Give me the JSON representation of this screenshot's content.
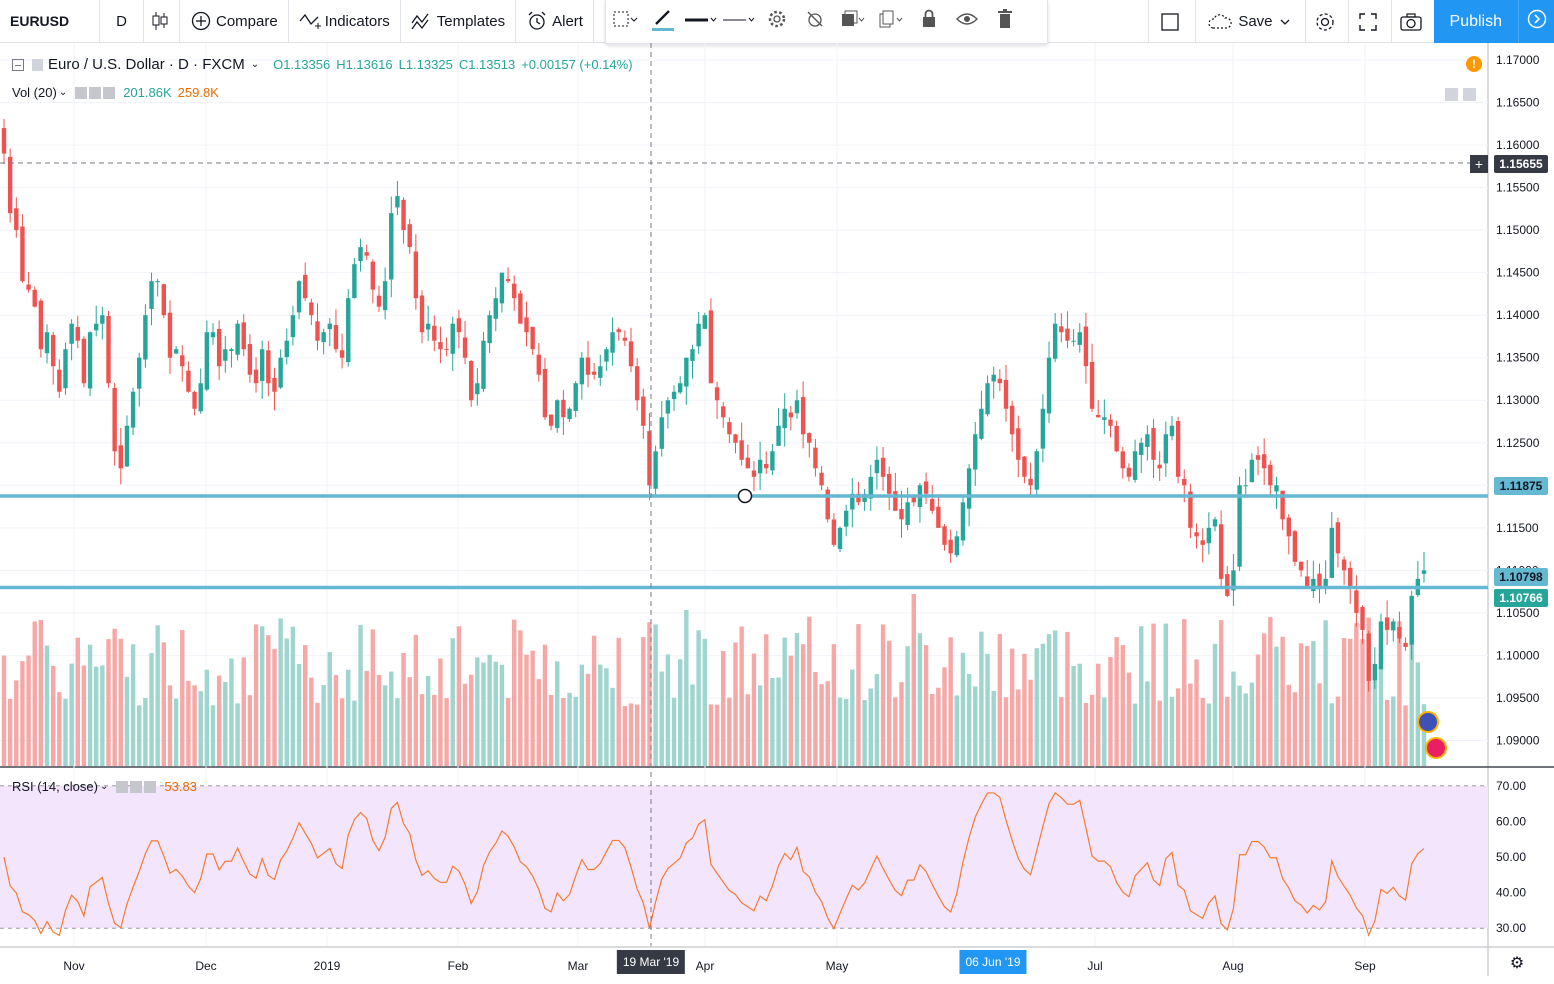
{
  "toolbar": {
    "symbol": "EURUSD",
    "interval": "D",
    "compare": "Compare",
    "indicators": "Indicators",
    "templates": "Templates",
    "alert": "Alert",
    "save": "Save",
    "publish": "Publish"
  },
  "legend": {
    "title": "Euro / U.S. Dollar · D · FXCM",
    "o": "O1.13356",
    "h": "H1.13616",
    "l": "L1.13325",
    "c": "C1.13513",
    "chg": "+0.00157 (+0.14%)",
    "vol_label": "Vol (20)",
    "vol1": "201.86K",
    "vol2": "259.8K",
    "rsi_label": "RSI (14, close)",
    "rsi_val": "53.83"
  },
  "price_axis": {
    "labels": [
      "1.17000",
      "1.16500",
      "1.16000",
      "1.15500",
      "1.15000",
      "1.14500",
      "1.14000",
      "1.13500",
      "1.13000",
      "1.12500",
      "1.12000",
      "1.11500",
      "1.11000",
      "1.10500",
      "1.10000",
      "1.09500",
      "1.09000"
    ],
    "crosshair": "1.15655",
    "line1": "1.11875",
    "line2": "1.10798",
    "last": "1.10766"
  },
  "rsi_axis": {
    "labels": [
      "70.00",
      "60.00",
      "50.00",
      "40.00",
      "30.00"
    ]
  },
  "time_axis": {
    "labels": [
      "Nov",
      "Dec",
      "2019",
      "Feb",
      "Mar",
      "Apr",
      "May",
      "Jul",
      "Aug",
      "Sep"
    ],
    "cursor_date": "19 Mar '19",
    "marker_date": "06 Jun '19"
  },
  "colors": {
    "up": "#26a69a",
    "down": "#ef5350",
    "line": "#65b8d2",
    "rsi": "#f57c32",
    "rsi_bg": "#f3e5fc",
    "accent": "#2196f3"
  },
  "chart_data": {
    "type": "candlestick",
    "series_name": "Euro / U.S. Dollar",
    "ylim": [
      1.087,
      1.172
    ],
    "hlines": [
      1.11875,
      1.10798
    ],
    "close": [
      1.159,
      1.152,
      1.15,
      1.144,
      1.143,
      1.141,
      1.136,
      1.138,
      1.134,
      1.131,
      1.136,
      1.139,
      1.137,
      1.132,
      1.138,
      1.139,
      1.14,
      1.132,
      1.124,
      1.122,
      1.127,
      1.131,
      1.135,
      1.14,
      1.144,
      1.144,
      1.14,
      1.135,
      1.136,
      1.134,
      1.131,
      1.129,
      1.132,
      1.138,
      1.138,
      1.134,
      1.136,
      1.136,
      1.139,
      1.136,
      1.133,
      1.132,
      1.136,
      1.132,
      1.131,
      1.135,
      1.137,
      1.14,
      1.144,
      1.142,
      1.14,
      1.137,
      1.138,
      1.139,
      1.136,
      1.135,
      1.142,
      1.146,
      1.148,
      1.147,
      1.143,
      1.141,
      1.144,
      1.152,
      1.154,
      1.15,
      1.148,
      1.142,
      1.138,
      1.139,
      1.137,
      1.136,
      1.136,
      1.139,
      1.138,
      1.135,
      1.13,
      1.132,
      1.137,
      1.14,
      1.142,
      1.145,
      1.144,
      1.142,
      1.139,
      1.138,
      1.136,
      1.133,
      1.128,
      1.127,
      1.13,
      1.128,
      1.129,
      1.132,
      1.135,
      1.133,
      1.133,
      1.134,
      1.136,
      1.138,
      1.138,
      1.137,
      1.134,
      1.13,
      1.127,
      1.12,
      1.124,
      1.128,
      1.13,
      1.131,
      1.132,
      1.135,
      1.136,
      1.139,
      1.14,
      1.132,
      1.13,
      1.128,
      1.126,
      1.125,
      1.123,
      1.122,
      1.121,
      1.123,
      1.122,
      1.124,
      1.127,
      1.129,
      1.128,
      1.13,
      1.126,
      1.125,
      1.122,
      1.12,
      1.116,
      1.113,
      1.115,
      1.117,
      1.119,
      1.118,
      1.119,
      1.121,
      1.123,
      1.121,
      1.119,
      1.117,
      1.116,
      1.118,
      1.118,
      1.12,
      1.119,
      1.117,
      1.115,
      1.113,
      1.112,
      1.114,
      1.118,
      1.122,
      1.126,
      1.129,
      1.132,
      1.133,
      1.132,
      1.129,
      1.126,
      1.123,
      1.121,
      1.12,
      1.124,
      1.129,
      1.135,
      1.139,
      1.138,
      1.137,
      1.137,
      1.138,
      1.134,
      1.129,
      1.128,
      1.128,
      1.127,
      1.124,
      1.122,
      1.121,
      1.124,
      1.125,
      1.126,
      1.123,
      1.122,
      1.126,
      1.127,
      1.121,
      1.12,
      1.115,
      1.114,
      1.113,
      1.115,
      1.116,
      1.109,
      1.107,
      1.11,
      1.12,
      1.12,
      1.123,
      1.123,
      1.122,
      1.12,
      1.12,
      1.116,
      1.114,
      1.111,
      1.11,
      1.108,
      1.109,
      1.108,
      1.109,
      1.115,
      1.112,
      1.11,
      1.108,
      1.105,
      1.103,
      1.097,
      1.099,
      1.104,
      1.103,
      1.104,
      1.102,
      1.101,
      1.107,
      1.109,
      1.11
    ]
  }
}
